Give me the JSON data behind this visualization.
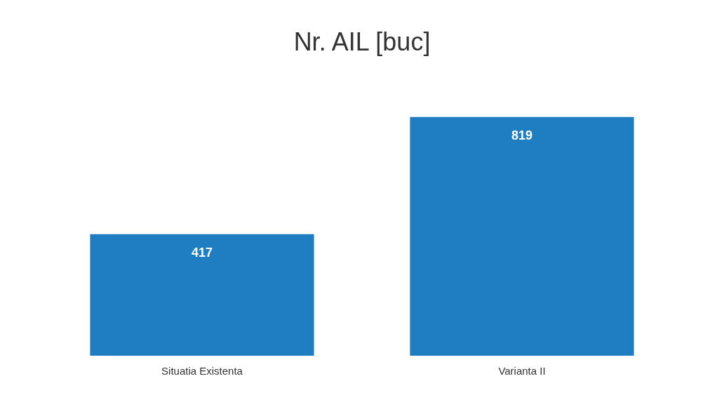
{
  "chart_data": {
    "type": "bar",
    "title": "Nr. AIL [buc]",
    "categories": [
      "Situatia Existenta",
      "Varianta II"
    ],
    "values": [
      417,
      819
    ],
    "color": "#1f7dc2",
    "data_labels": true,
    "grid": false,
    "legend": false,
    "tick_labels": "x"
  }
}
